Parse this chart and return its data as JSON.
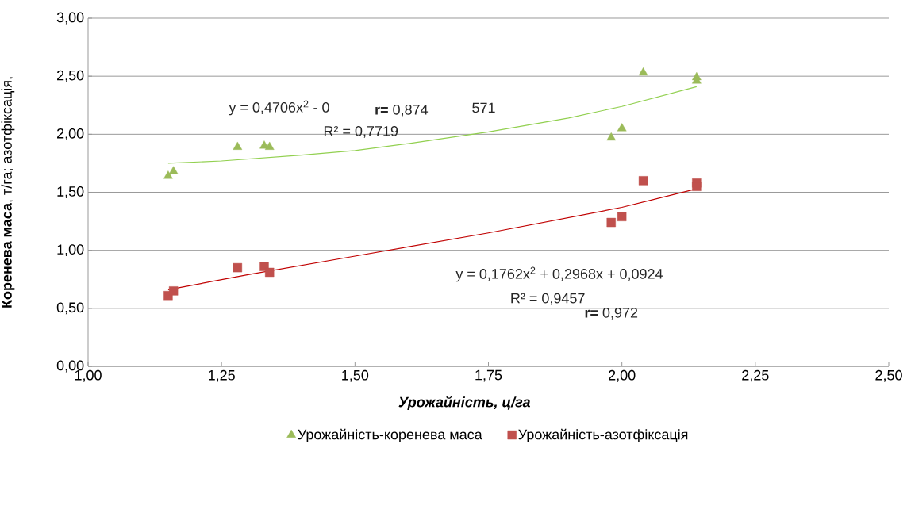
{
  "chart_data": {
    "type": "scatter",
    "xlabel": "Урожайність, ц/га",
    "ylabel": "**Коренева маса**, т/га; азотфіксація,",
    "xlim": [
      1.0,
      2.5
    ],
    "ylim": [
      0.0,
      3.0
    ],
    "xticks": [
      {
        "value": 1.0,
        "label": "1,00"
      },
      {
        "value": 1.25,
        "label": "1,25"
      },
      {
        "value": 1.5,
        "label": "1,50"
      },
      {
        "value": 1.75,
        "label": "1,75"
      },
      {
        "value": 2.0,
        "label": "2,00"
      },
      {
        "value": 2.25,
        "label": "2,25"
      },
      {
        "value": 2.5,
        "label": "2,50"
      }
    ],
    "yticks": [
      {
        "value": 0.0,
        "label": "0,00"
      },
      {
        "value": 0.5,
        "label": "0,50"
      },
      {
        "value": 1.0,
        "label": "1,00"
      },
      {
        "value": 1.5,
        "label": "1,50"
      },
      {
        "value": 2.0,
        "label": "2,00"
      },
      {
        "value": 2.5,
        "label": "2,50"
      },
      {
        "value": 3.0,
        "label": "3,00"
      }
    ],
    "grid": "y",
    "legend": "bottom",
    "series": [
      {
        "name": "Урожайність-коренева маса",
        "color": "#9bbb59",
        "marker": "triangle",
        "x": [
          1.15,
          1.16,
          1.28,
          1.33,
          1.34,
          1.98,
          2.0,
          2.04,
          2.14,
          2.14
        ],
        "values": [
          1.64,
          1.68,
          1.89,
          1.9,
          1.89,
          1.97,
          2.05,
          2.53,
          2.49,
          2.46
        ]
      },
      {
        "name": "Урожайність-азотфіксація",
        "color": "#c0504d",
        "marker": "square",
        "x": [
          1.15,
          1.16,
          1.28,
          1.33,
          1.34,
          1.98,
          2.0,
          2.04,
          2.14,
          2.14
        ],
        "values": [
          0.61,
          0.65,
          0.85,
          0.86,
          0.81,
          1.24,
          1.29,
          1.6,
          1.58,
          1.55
        ]
      },
      {
        "type": "line",
        "color": "#92d050",
        "marker": "none",
        "x": [
          1.15,
          1.25,
          1.4,
          1.5,
          1.6,
          1.75,
          1.9,
          2.0,
          2.14
        ],
        "values": [
          1.75,
          1.77,
          1.82,
          1.86,
          1.92,
          2.02,
          2.14,
          2.24,
          2.41
        ]
      },
      {
        "type": "line",
        "color": "#c00000",
        "marker": "none",
        "x": [
          1.15,
          1.3,
          1.5,
          1.75,
          2.0,
          2.14
        ],
        "values": [
          0.66,
          0.79,
          0.95,
          1.15,
          1.37,
          1.53
        ]
      }
    ],
    "annotations": [
      "y = 0,4706x$^{2}$ - 0",
      "**r=** 0,874",
      "571",
      "R² = 0,7719",
      "y = 0,1762x$^{2}$ + 0,2968x + 0,0924",
      "R² = 0,9457",
      "**r=** 0,972"
    ]
  }
}
